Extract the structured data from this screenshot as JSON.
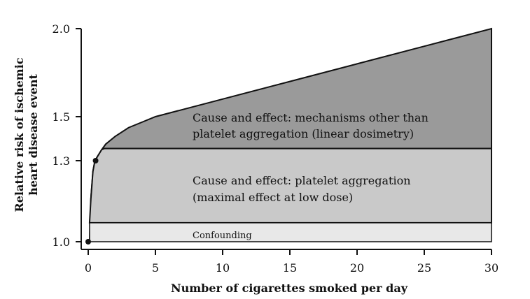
{
  "chart_data": {
    "type": "area",
    "xlabel": "Number of cigarettes smoked per day",
    "ylabel_lines": [
      "Relative risk of ischemic",
      "heart disease event"
    ],
    "xlim": [
      0,
      30
    ],
    "ylim_ticks": [
      1.0,
      1.3,
      1.5,
      2.0
    ],
    "x_ticks": [
      0,
      5,
      10,
      15,
      20,
      25,
      30
    ],
    "y_tick_labels": [
      "1.0",
      "1.3",
      "1.5",
      "2.0"
    ],
    "x_tick_labels": [
      "0",
      "5",
      "10",
      "15",
      "20",
      "25",
      "30"
    ],
    "upper_curve": {
      "x": [
        0.1,
        0.2,
        0.35,
        0.5,
        0.7,
        1.0,
        1.3,
        2.0,
        3.0,
        4.0,
        5.0,
        10,
        15,
        20,
        25,
        30
      ],
      "y": [
        1.0,
        1.16,
        1.26,
        1.3,
        1.32,
        1.35,
        1.375,
        1.41,
        1.45,
        1.475,
        1.5,
        1.6,
        1.7,
        1.8,
        1.9,
        2.0
      ]
    },
    "bands": [
      {
        "name": "Confounding",
        "y_low": 1.0,
        "y_high": 1.07,
        "color": "#e8e8e8"
      },
      {
        "name": "Cause and effect: platelet aggregation (maximal effect at low dose)",
        "y_low": 1.07,
        "y_high": 1.355,
        "x_start": 1.2,
        "color": "#c9c9c9"
      },
      {
        "name": "Cause and effect: mechanisms other than platelet aggregation (linear dosimetry)",
        "y_low": 1.355,
        "color": "#9a9a9a"
      }
    ],
    "points": [
      {
        "x": 0,
        "y": 1.0
      },
      {
        "x": 0.55,
        "y": 1.3
      }
    ],
    "annotations": {
      "top": [
        "Cause and effect: mechanisms other than",
        "platelet aggregation (linear dosimetry)"
      ],
      "middle": [
        "Cause and effect: platelet aggregation",
        "(maximal effect at low dose)"
      ],
      "bottom": "Confounding"
    }
  }
}
